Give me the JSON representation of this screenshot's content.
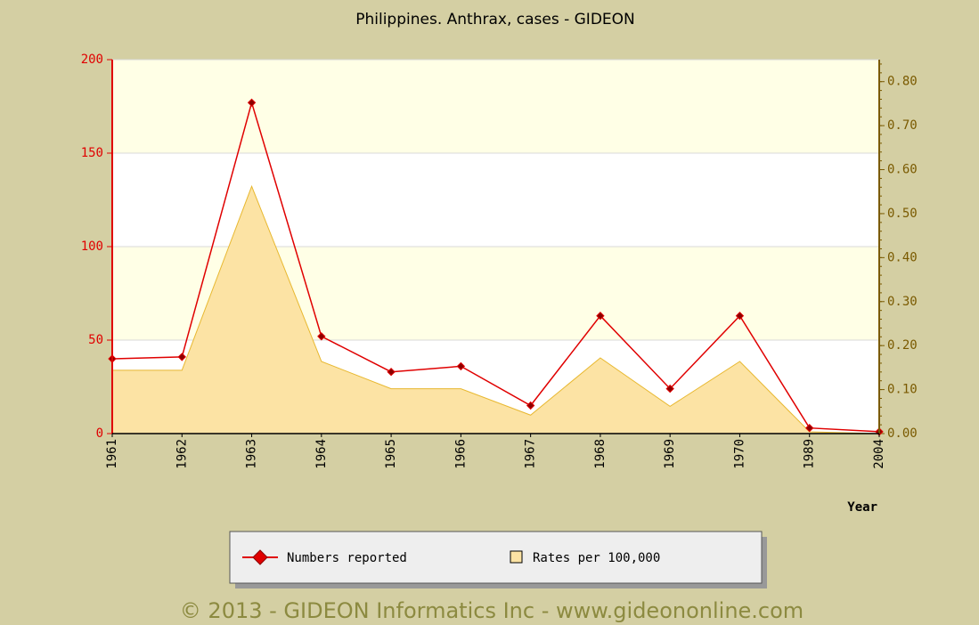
{
  "chart_data": {
    "type": "line",
    "title": "Philippines. Anthrax, cases - GIDEON",
    "x_label": "Year",
    "categories": [
      "1961",
      "1962",
      "1963",
      "1964",
      "1965",
      "1966",
      "1967",
      "1968",
      "1969",
      "1970",
      "1989",
      "2004"
    ],
    "series": [
      {
        "name": "Numbers reported",
        "type": "line",
        "color": "#e00000",
        "values": [
          40,
          41,
          177,
          52,
          33,
          36,
          15,
          63,
          24,
          63,
          3,
          1
        ]
      },
      {
        "name": "Rates per 100,000",
        "type": "area",
        "axis": "y2",
        "color": "#fce3a4",
        "values": [
          0.144,
          0.144,
          0.562,
          0.164,
          0.102,
          0.102,
          0.042,
          0.172,
          0.062,
          0.164,
          0.004,
          0
        ]
      }
    ],
    "ylim": [
      0,
      200
    ],
    "yticks": [
      0,
      50,
      100,
      150,
      200
    ],
    "y2lim": [
      0,
      0.85
    ],
    "y2ticks": [
      {
        "value": 0,
        "label": "0.00"
      },
      {
        "value": 0.1,
        "label": "0.10"
      },
      {
        "value": 0.2,
        "label": "0.20"
      },
      {
        "value": 0.3,
        "label": "0.30"
      },
      {
        "value": 0.4,
        "label": "0.40"
      },
      {
        "value": 0.5,
        "label": "0.50"
      },
      {
        "value": 0.6,
        "label": "0.60"
      },
      {
        "value": 0.7,
        "label": "0.70"
      },
      {
        "value": 0.8,
        "label": "0.80"
      }
    ],
    "grid": true,
    "legend": "bottom",
    "footer": "© 2013 - GIDEON Informatics Inc - www.gideononline.com"
  }
}
